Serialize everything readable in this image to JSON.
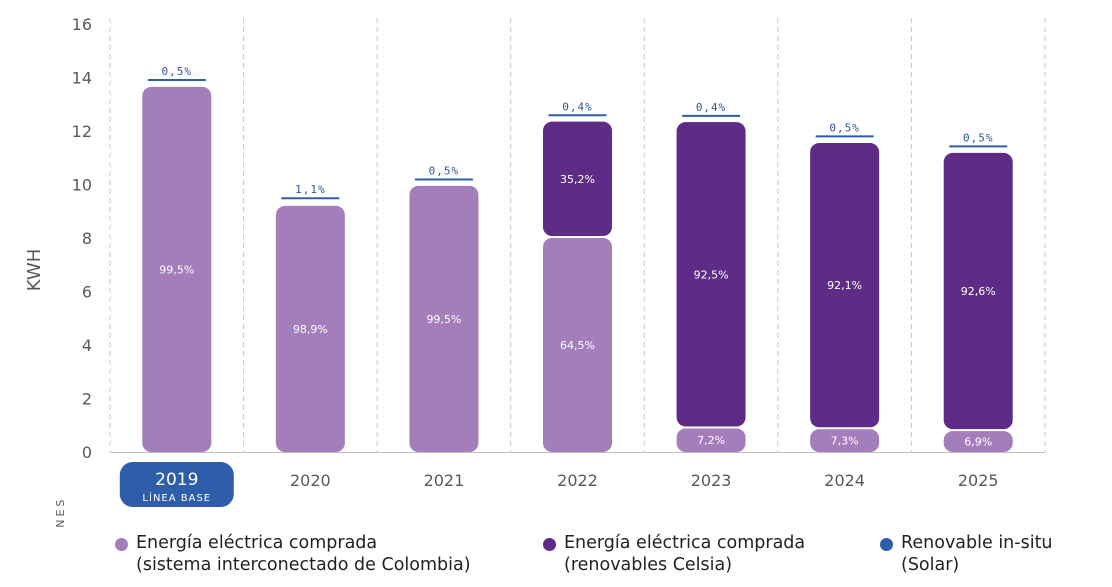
{
  "chart_data": {
    "type": "bar",
    "stacked": true,
    "ylabel": "KWH",
    "yunit": "MILLONES",
    "ylim": [
      0,
      16
    ],
    "yticks": [
      0,
      2,
      4,
      6,
      8,
      10,
      12,
      14,
      16
    ],
    "categories": [
      "2019",
      "2020",
      "2021",
      "2022",
      "2023",
      "2024",
      "2025"
    ],
    "base_year_sublabel": "LÍNEA BASE",
    "grid": "vertical dashed",
    "legend_position": "bottom",
    "series": [
      {
        "name": "Energía eléctrica comprada (sistema interconectado de Colombia)",
        "legend_line1": "Energía eléctrica comprada",
        "legend_line2": "(sistema interconectado de Colombia)",
        "color": "#a47eba",
        "values": [
          13.65,
          9.2,
          9.95,
          8.0,
          0.88,
          0.85,
          0.78
        ],
        "labels": [
          "99,5%",
          "98,9%",
          "99,5%",
          "64,5%",
          "7,2%",
          "7,3%",
          "6,9%"
        ]
      },
      {
        "name": "Energía eléctrica comprada (renovables Celsia)",
        "legend_line1": "Energía eléctrica comprada",
        "legend_line2": "(renovables Celsia)",
        "color": "#5e2c87",
        "values": [
          0,
          0,
          0,
          4.35,
          11.45,
          10.7,
          10.4
        ],
        "labels": [
          "",
          "",
          "",
          "35,2%",
          "92,5%",
          "92,1%",
          "92,6%"
        ]
      },
      {
        "name": "Renovable in-situ (Solar)",
        "legend_line1": "Renovable in-situ",
        "legend_line2": "(Solar)",
        "color": "#2e5eaa",
        "values": [
          0.07,
          0.1,
          0.05,
          0.05,
          0.05,
          0.06,
          0.06
        ],
        "labels": [
          "0,5%",
          "1,1%",
          "0,5%",
          "0,4%",
          "0,4%",
          "0,5%",
          "0,5%"
        ]
      }
    ]
  }
}
